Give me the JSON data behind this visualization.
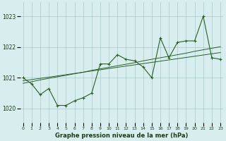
{
  "x": [
    0,
    1,
    2,
    3,
    4,
    5,
    6,
    7,
    8,
    9,
    10,
    11,
    12,
    13,
    14,
    15,
    16,
    17,
    18,
    19,
    20,
    21,
    22,
    23
  ],
  "y_main": [
    1021.0,
    1020.8,
    1020.45,
    1020.65,
    1020.1,
    1020.1,
    1020.25,
    1020.35,
    1020.5,
    1021.45,
    1021.45,
    1021.75,
    1021.6,
    1021.55,
    1021.35,
    1021.0,
    1022.3,
    1021.65,
    1022.15,
    1022.2,
    1022.2,
    1023.0,
    1021.65,
    1021.6
  ],
  "y_trend1": [
    1020.82,
    1020.87,
    1020.93,
    1020.98,
    1021.03,
    1021.08,
    1021.13,
    1021.18,
    1021.24,
    1021.29,
    1021.34,
    1021.39,
    1021.44,
    1021.49,
    1021.55,
    1021.6,
    1021.65,
    1021.7,
    1021.75,
    1021.8,
    1021.86,
    1021.91,
    1021.96,
    1022.01
  ],
  "y_trend2": [
    1020.9,
    1020.94,
    1020.98,
    1021.02,
    1021.06,
    1021.1,
    1021.14,
    1021.18,
    1021.22,
    1021.26,
    1021.3,
    1021.34,
    1021.38,
    1021.42,
    1021.46,
    1021.5,
    1021.54,
    1021.58,
    1021.62,
    1021.66,
    1021.7,
    1021.74,
    1021.78,
    1021.82
  ],
  "bg_color": "#d8eeee",
  "line_color": "#2a5e2a",
  "grid_color": "#9dbfbf",
  "label_color": "#1a3a1a",
  "xlabel_label": "Graphe pression niveau de la mer (hPa)"
}
